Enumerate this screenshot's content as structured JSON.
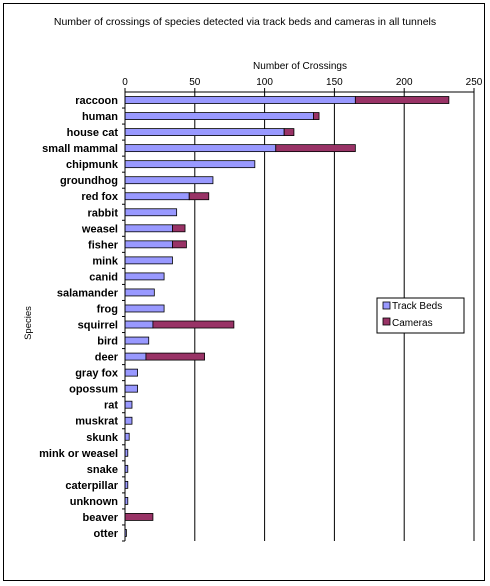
{
  "chart_data": {
    "type": "bar",
    "orientation": "horizontal",
    "stacked": true,
    "title": "Number of crossings of species detected via track beds and cameras in all tunnels",
    "xlabel": "Number of Crossings",
    "ylabel": "Species",
    "xlim": [
      0,
      250
    ],
    "x_ticks": [
      "0",
      "50",
      "100",
      "150",
      "200",
      "250"
    ],
    "x_tick_values": [
      0,
      50,
      100,
      150,
      200,
      250
    ],
    "grid": true,
    "legend_position": "right",
    "categories": [
      "raccoon",
      "human",
      "house cat",
      "small mammal",
      "chipmunk",
      "groundhog",
      "red fox",
      "rabbit",
      "weasel",
      "fisher",
      "mink",
      "canid",
      "salamander",
      "frog",
      "squirrel",
      "bird",
      "deer",
      "gray fox",
      "opossum",
      "rat",
      "muskrat",
      "skunk",
      "mink or weasel",
      "snake",
      "caterpillar",
      "unknown",
      "beaver",
      "otter"
    ],
    "series": [
      {
        "name": "Track Beds",
        "color": "#9999ff",
        "values": [
          165,
          135,
          114,
          108,
          93,
          63,
          46,
          37,
          34,
          34,
          34,
          28,
          21,
          28,
          20,
          17,
          15,
          9,
          9,
          5,
          5,
          3,
          2,
          2,
          2,
          2,
          0,
          1
        ]
      },
      {
        "name": "Cameras",
        "color": "#993366",
        "values": [
          67,
          4,
          7,
          57,
          0,
          0,
          14,
          0,
          9,
          10,
          0,
          0,
          0,
          0,
          58,
          0,
          42,
          0,
          0,
          0,
          0,
          0,
          0,
          0,
          0,
          0,
          20,
          0
        ]
      }
    ]
  }
}
